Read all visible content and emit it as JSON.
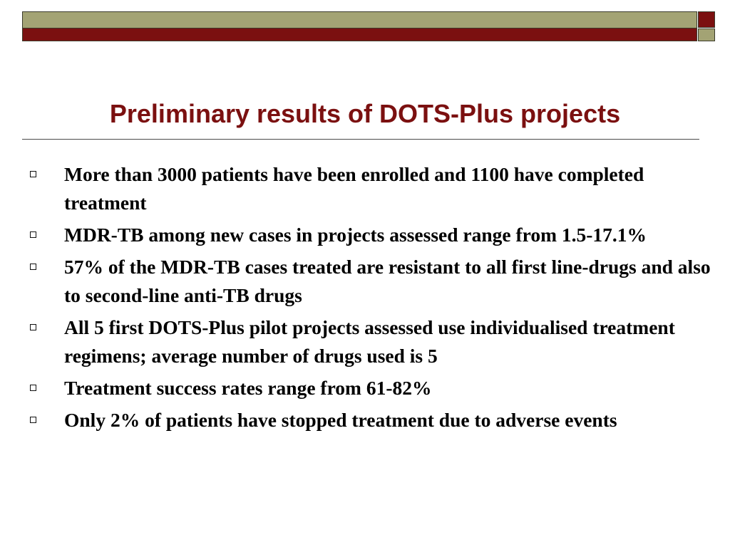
{
  "colors": {
    "accent": "#7b1010",
    "band_olive": "#a3a374",
    "text": "#000000"
  },
  "slide": {
    "title": "Preliminary results of DOTS-Plus projects",
    "bullets": [
      "More than 3000 patients have been enrolled and 1100 have completed treatment",
      "MDR-TB among new cases in projects assessed range from 1.5-17.1%",
      "57% of the MDR-TB cases treated are resistant to all first line-drugs and also to second-line anti-TB drugs",
      "All 5 first DOTS-Plus pilot projects assessed use individualised treatment regimens; average number of drugs used is 5",
      "Treatment success rates range from 61-82%",
      "Only 2% of patients have stopped treatment due to adverse events"
    ],
    "bullet_icon": "hollow-square-bullet-icon"
  }
}
